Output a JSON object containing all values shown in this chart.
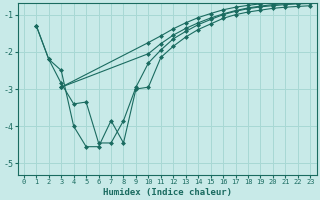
{
  "xlabel": "Humidex (Indice chaleur)",
  "background_color": "#c8eae8",
  "grid_color": "#a8d8d4",
  "line_color": "#1a6b60",
  "xlim": [
    -0.5,
    23.5
  ],
  "ylim": [
    -5.3,
    -0.7
  ],
  "xticks": [
    0,
    1,
    2,
    3,
    4,
    5,
    6,
    7,
    8,
    9,
    10,
    11,
    12,
    13,
    14,
    15,
    16,
    17,
    18,
    19,
    20,
    21,
    22,
    23
  ],
  "yticks": [
    -5,
    -4,
    -3,
    -2,
    -1
  ],
  "series": [
    {
      "x": [
        1,
        2,
        3,
        4,
        5,
        6,
        7,
        8,
        9,
        10,
        11,
        12,
        13,
        14,
        15,
        16,
        17,
        18,
        19,
        20,
        21,
        22,
        23
      ],
      "y": [
        -1.3,
        -2.2,
        -2.5,
        -4.0,
        -4.55,
        -4.55,
        -3.85,
        -4.45,
        -3.0,
        -2.95,
        -2.15,
        -1.85,
        -1.6,
        -1.4,
        -1.25,
        -1.1,
        -1.0,
        -0.93,
        -0.88,
        -0.83,
        -0.8,
        -0.78,
        -0.76
      ]
    },
    {
      "x": [
        1,
        2,
        3,
        4,
        5,
        6,
        7,
        8,
        9,
        10,
        11,
        12,
        13,
        14,
        15,
        16,
        17,
        18,
        19,
        20,
        21,
        22,
        23
      ],
      "y": [
        -1.3,
        -2.2,
        -2.85,
        -3.4,
        -3.35,
        -4.45,
        -4.45,
        -3.85,
        -2.95,
        -2.3,
        -1.95,
        -1.65,
        -1.45,
        -1.27,
        -1.13,
        -1.0,
        -0.91,
        -0.84,
        -0.79,
        -0.76,
        -0.73,
        -0.71,
        -0.7
      ]
    },
    {
      "x": [
        3,
        10,
        11,
        12,
        13,
        14,
        15,
        16,
        17,
        18,
        19,
        20,
        21,
        22,
        23
      ],
      "y": [
        -2.95,
        -1.75,
        -1.57,
        -1.38,
        -1.22,
        -1.08,
        -0.97,
        -0.87,
        -0.8,
        -0.75,
        -0.71,
        -0.68,
        -0.65,
        -0.63,
        -0.62
      ]
    },
    {
      "x": [
        3,
        10,
        11,
        12,
        13,
        14,
        15,
        16,
        17,
        18,
        19,
        20,
        21,
        22,
        23
      ],
      "y": [
        -2.95,
        -2.05,
        -1.78,
        -1.55,
        -1.37,
        -1.22,
        -1.09,
        -0.98,
        -0.89,
        -0.82,
        -0.77,
        -0.73,
        -0.7,
        -0.67,
        -0.65
      ]
    }
  ]
}
